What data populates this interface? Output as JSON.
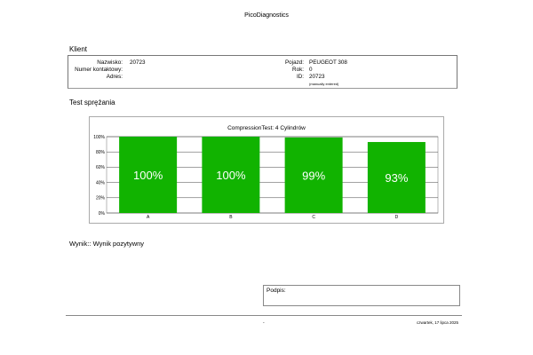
{
  "app_title": "PicoDiagnostics",
  "client_section": {
    "title": "Klient",
    "fields_left": [
      {
        "label": "Nazwisko:",
        "value": "20723"
      },
      {
        "label": "Numer kontaktowy:",
        "value": ""
      },
      {
        "label": "Adres:",
        "value": ""
      }
    ],
    "fields_right": [
      {
        "label": "Pojazd:",
        "value": "PEUGEOT 308"
      },
      {
        "label": "Rok:",
        "value": "0"
      },
      {
        "label": "ID:",
        "value": "20723"
      }
    ],
    "id_note": "(manually entered)"
  },
  "test_section": {
    "title": "Test sprężania"
  },
  "chart_data": {
    "type": "bar",
    "title": "CompressionTest: 4 Cylindrów",
    "categories": [
      "A",
      "B",
      "C",
      "D"
    ],
    "values": [
      100,
      100,
      99,
      93
    ],
    "data_labels": [
      "100%",
      "100%",
      "99%",
      "93%"
    ],
    "y_ticks": [
      "0%",
      "20%",
      "40%",
      "60%",
      "80%",
      "100%"
    ],
    "ylim": [
      0,
      100
    ],
    "bar_color": "#11b300",
    "grid": true,
    "legend": false
  },
  "result": {
    "text": "Wynik:: Wynik pozytywny"
  },
  "signature": {
    "label": "Podpis:"
  },
  "footer": {
    "dash": "-",
    "date": "czwartek, 17 lipca 2025"
  }
}
